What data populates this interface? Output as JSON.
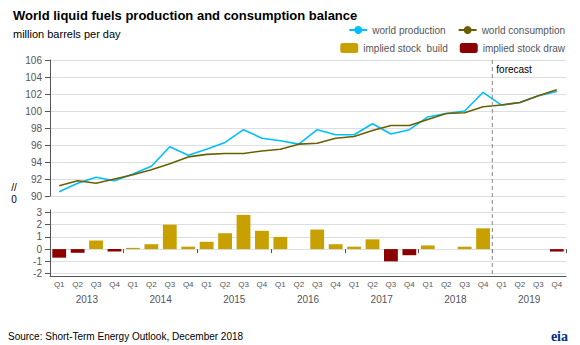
{
  "chart_data": [
    {
      "type": "line",
      "title": "World liquid fuels production and consumption balance",
      "ylabel": "million barrels per day",
      "source": "Source: Short-Term Energy Outlook, December 2018",
      "logo": {
        "text": "eia",
        "color": "#003087"
      },
      "categories": [
        "Q1",
        "Q2",
        "Q3",
        "Q4",
        "Q1",
        "Q2",
        "Q3",
        "Q4",
        "Q1",
        "Q2",
        "Q3",
        "Q4",
        "Q1",
        "Q2",
        "Q3",
        "Q4",
        "Q1",
        "Q2",
        "Q3",
        "Q4",
        "Q1",
        "Q2",
        "Q3",
        "Q4",
        "Q1",
        "Q2",
        "Q3",
        "Q4"
      ],
      "series": [
        {
          "name": "world production",
          "color": "#00BFFF",
          "values": [
            90.5,
            91.5,
            92.2,
            91.8,
            92.6,
            93.5,
            95.8,
            94.8,
            95.5,
            96.3,
            97.8,
            96.8,
            96.5,
            96.1,
            97.8,
            97.2,
            97.2,
            98.5,
            97.3,
            97.8,
            99.3,
            99.7,
            100.0,
            102.2,
            100.7,
            101.0,
            101.8,
            102.3
          ]
        },
        {
          "name": "world consumption",
          "color": "#6B6000",
          "values": [
            91.2,
            91.8,
            91.5,
            92.0,
            92.5,
            93.1,
            93.8,
            94.6,
            94.9,
            95.0,
            95.0,
            95.3,
            95.5,
            96.1,
            96.2,
            96.8,
            97.0,
            97.7,
            98.3,
            98.3,
            99.0,
            99.7,
            99.8,
            100.5,
            100.7,
            101.0,
            101.8,
            102.5
          ]
        }
      ],
      "ylim": [
        90,
        106
      ],
      "yticks": [
        90,
        92,
        94,
        96,
        98,
        100,
        102,
        104,
        106
      ],
      "y_break": [
        "//",
        "0"
      ],
      "annotations": [
        {
          "text": "forecast",
          "x": 23.5
        }
      ],
      "grid": true,
      "legend": "upper right"
    },
    {
      "type": "bar",
      "categories": [
        "Q1",
        "Q2",
        "Q3",
        "Q4",
        "Q1",
        "Q2",
        "Q3",
        "Q4",
        "Q1",
        "Q2",
        "Q3",
        "Q4",
        "Q1",
        "Q2",
        "Q3",
        "Q4",
        "Q1",
        "Q2",
        "Q3",
        "Q4",
        "Q1",
        "Q2",
        "Q3",
        "Q4",
        "Q1",
        "Q2",
        "Q3",
        "Q4"
      ],
      "years": [
        "2013",
        "2013",
        "2013",
        "2013",
        "2014",
        "2014",
        "2014",
        "2014",
        "2015",
        "2015",
        "2015",
        "2015",
        "2016",
        "2016",
        "2016",
        "2016",
        "2017",
        "2017",
        "2017",
        "2017",
        "2018",
        "2018",
        "2018",
        "2018",
        "2019",
        "2019",
        "2019",
        "2019"
      ],
      "series": [
        {
          "name": "implied stock  build",
          "color": "#C8A000",
          "values": [
            null,
            null,
            0.7,
            null,
            0.1,
            0.4,
            2.0,
            0.2,
            0.6,
            1.3,
            2.8,
            1.5,
            1.0,
            0.0,
            1.6,
            0.4,
            0.2,
            0.8,
            null,
            null,
            0.3,
            0.0,
            0.2,
            1.7,
            0.0,
            0.0,
            0.0,
            null
          ]
        },
        {
          "name": "implied stock draw",
          "color": "#8B0000",
          "values": [
            -0.7,
            -0.3,
            null,
            -0.2,
            null,
            null,
            null,
            null,
            null,
            null,
            null,
            null,
            null,
            null,
            null,
            null,
            null,
            null,
            -1.0,
            -0.5,
            null,
            null,
            null,
            null,
            null,
            null,
            null,
            -0.2
          ]
        }
      ],
      "ylim": [
        -2.2,
        3.2
      ],
      "yticks": [
        -2,
        -1,
        0,
        1,
        2,
        3
      ],
      "grid": true,
      "legend": "upper right"
    }
  ]
}
